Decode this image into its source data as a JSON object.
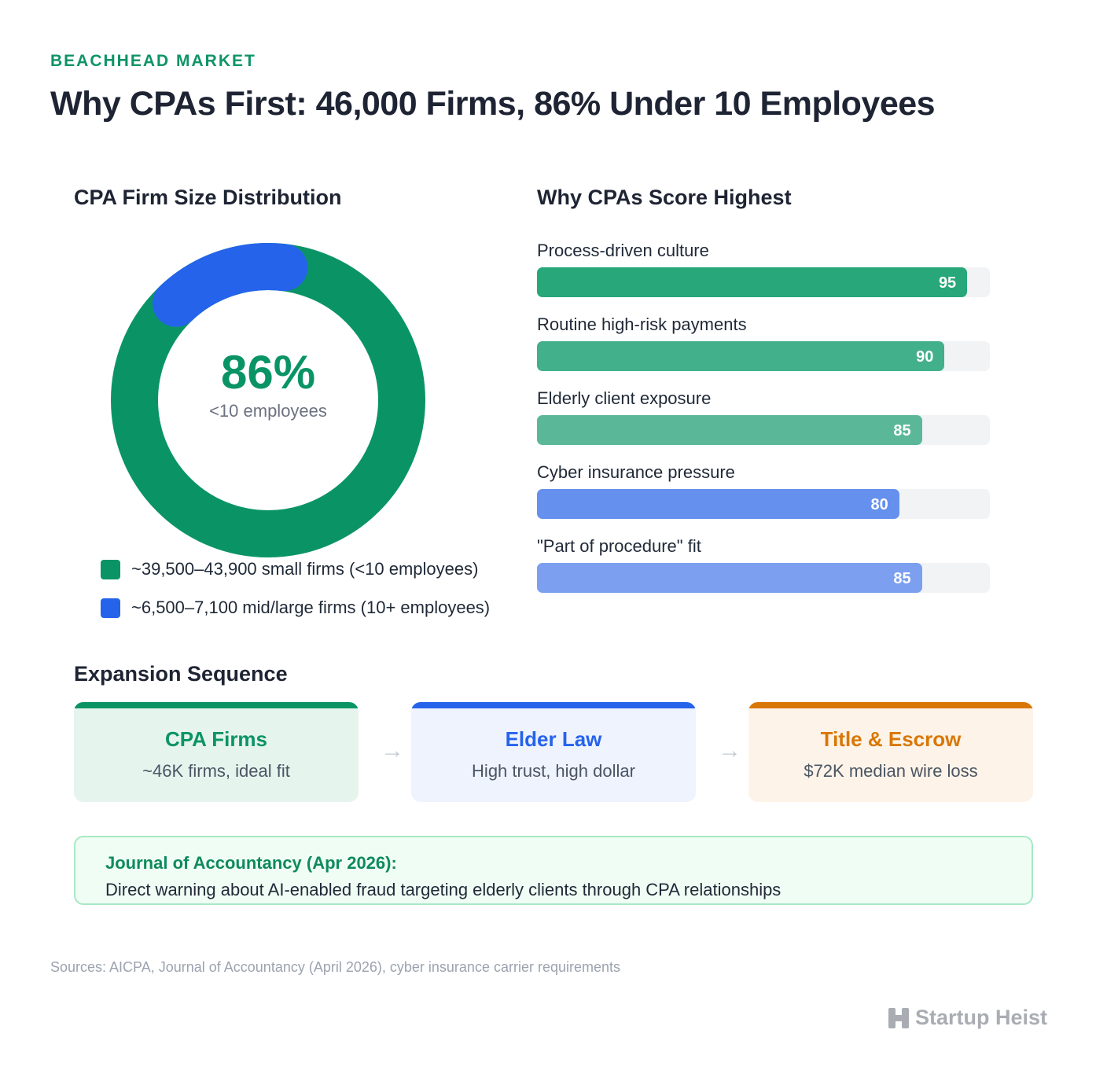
{
  "header": {
    "eyebrow": "BEACHHEAD MARKET",
    "title": "Why CPAs First: 46,000 Firms, 86% Under 10 Employees"
  },
  "chart_data": [
    {
      "type": "pie",
      "title": "CPA Firm Size Distribution",
      "center_value": "86%",
      "center_label": "<10 employees",
      "slices": [
        {
          "label": "~39,500–43,900 small firms (<10 employees)",
          "value": 86,
          "color": "#0a9466"
        },
        {
          "label": "~6,500–7,100 mid/large firms (10+ employees)",
          "value": 14,
          "color": "#2563eb"
        }
      ]
    },
    {
      "type": "bar",
      "orientation": "horizontal",
      "title": "Why CPAs Score Highest",
      "xlim": [
        0,
        100
      ],
      "categories": [
        "Process-driven culture",
        "Routine high-risk payments",
        "Elderly client exposure",
        "Cyber insurance pressure",
        "\"Part of procedure\" fit"
      ],
      "values": [
        95,
        90,
        85,
        80,
        85
      ],
      "colors": [
        "#28a77a",
        "#42b08a",
        "#5ab899",
        "#6690ee",
        "#7c9ff0"
      ]
    }
  ],
  "expansion": {
    "title": "Expansion Sequence",
    "cards": [
      {
        "title": "CPA Firms",
        "sub": "~46K firms, ideal fit",
        "accent": "#0a9466",
        "bg": "#e6f4ee"
      },
      {
        "title": "Elder Law",
        "sub": "High trust, high dollar",
        "accent": "#2563eb",
        "bg": "#eef3fe"
      },
      {
        "title": "Title & Escrow",
        "sub": "$72K median wire loss",
        "accent": "#d97706",
        "bg": "#fdf3e8"
      }
    ],
    "arrow": "→"
  },
  "callout": {
    "title": "Journal of Accountancy (Apr 2026):",
    "body": "Direct warning about AI-enabled fraud targeting elderly clients through CPA relationships"
  },
  "footer": {
    "sources": "Sources: AICPA, Journal of Accountancy (April 2026), cyber insurance carrier requirements",
    "brand": "Startup Heist",
    "brand_icon": "h-block-icon"
  }
}
